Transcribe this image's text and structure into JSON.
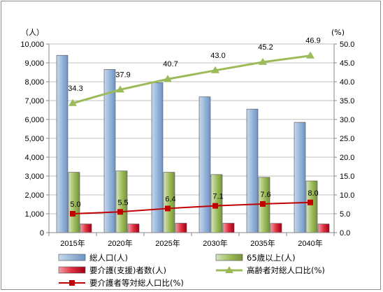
{
  "chart_data": {
    "type": "bar",
    "categories": [
      "2015年",
      "2020年",
      "2025年",
      "2030年",
      "2035年",
      "2040年"
    ],
    "left_unit": "（人）",
    "right_unit": "(%)",
    "left_axis": {
      "ylim": [
        0,
        10000
      ],
      "ticks": [
        "0",
        "1,000",
        "2,000",
        "3,000",
        "4,000",
        "5,000",
        "6,000",
        "7,000",
        "8,000",
        "9,000",
        "10,000"
      ]
    },
    "right_axis": {
      "ylim": [
        0,
        50
      ],
      "ticks": [
        "0.0",
        "5.0",
        "10.0",
        "15.0",
        "20.0",
        "25.0",
        "30.0",
        "35.0",
        "40.0",
        "45.0",
        "50.0"
      ]
    },
    "grid": true,
    "legend_position": "bottom",
    "series": [
      {
        "name": "総人口(人)",
        "kind": "bar",
        "axis": "left",
        "color": "#8eb4e3",
        "values": [
          9400,
          8650,
          7950,
          7200,
          6550,
          5850
        ]
      },
      {
        "name": "65歳以上(人)",
        "kind": "bar",
        "axis": "left",
        "color": "#9bbb59",
        "values": [
          3200,
          3270,
          3200,
          3080,
          2930,
          2740
        ]
      },
      {
        "name": "要介護(支援)者数(人)",
        "kind": "bar",
        "axis": "left",
        "color": "#e04050",
        "values": [
          460,
          460,
          500,
          500,
          490,
          460
        ]
      },
      {
        "name": "高齢者対総人口比(%)",
        "kind": "line",
        "axis": "right",
        "color": "#9bbb59",
        "marker": "triangle",
        "values": [
          34.3,
          37.9,
          40.7,
          43.0,
          45.2,
          46.9
        ],
        "labels": [
          "34.3",
          "37.9",
          "40.7",
          "43.0",
          "45.2",
          "46.9"
        ]
      },
      {
        "name": "要介護者等対総人口比(%)",
        "kind": "line",
        "axis": "right",
        "color": "#c00000",
        "marker": "square",
        "values": [
          5.0,
          5.5,
          6.4,
          7.1,
          7.6,
          8.0
        ],
        "labels": [
          "5.0",
          "5.5",
          "6.4",
          "7.1",
          "7.6",
          "8.0"
        ]
      }
    ]
  }
}
